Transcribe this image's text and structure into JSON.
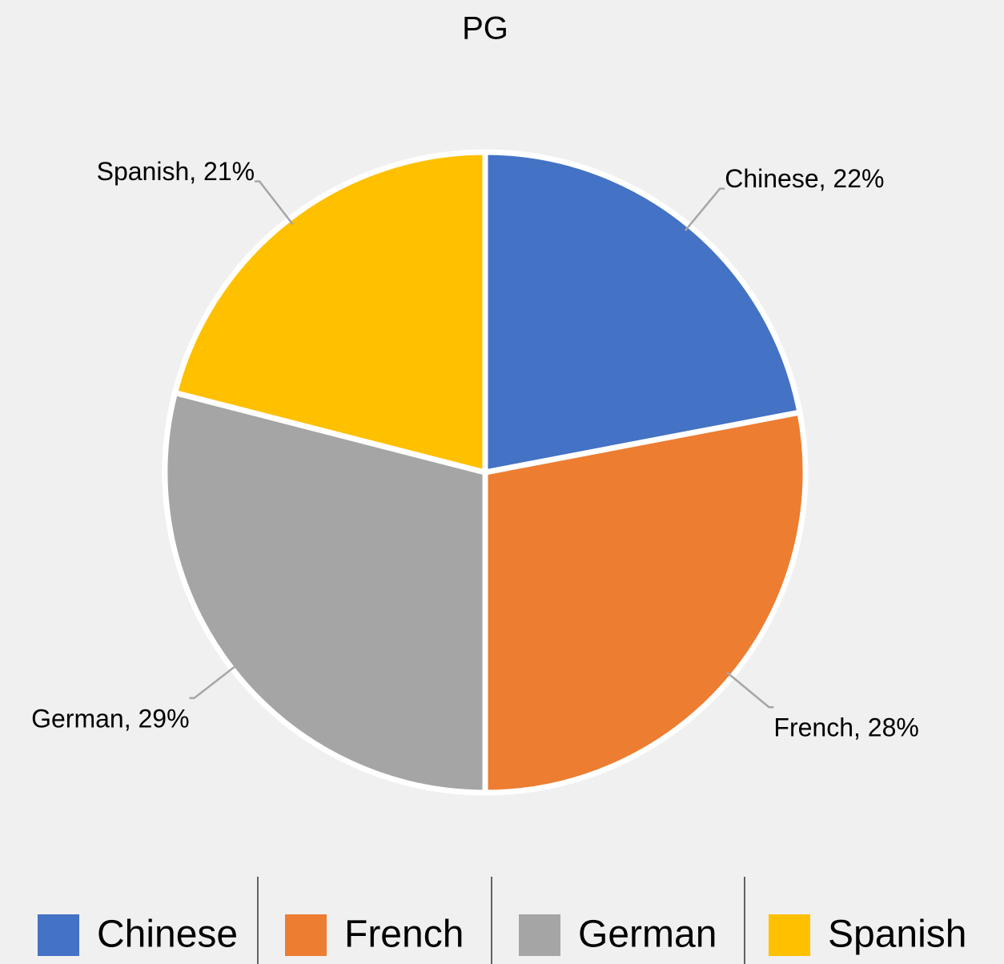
{
  "chart_data": {
    "type": "pie",
    "title": "PG",
    "categories": [
      "Chinese",
      "French",
      "German",
      "Spanish"
    ],
    "values": [
      22,
      28,
      29,
      21
    ],
    "value_labels": [
      "Chinese, 22%",
      "French, 28%",
      "German, 29%",
      "Spanish, 21%"
    ],
    "colors": [
      "#4472c4",
      "#ed7d31",
      "#a5a5a5",
      "#ffc000"
    ],
    "legend": "bottom"
  }
}
